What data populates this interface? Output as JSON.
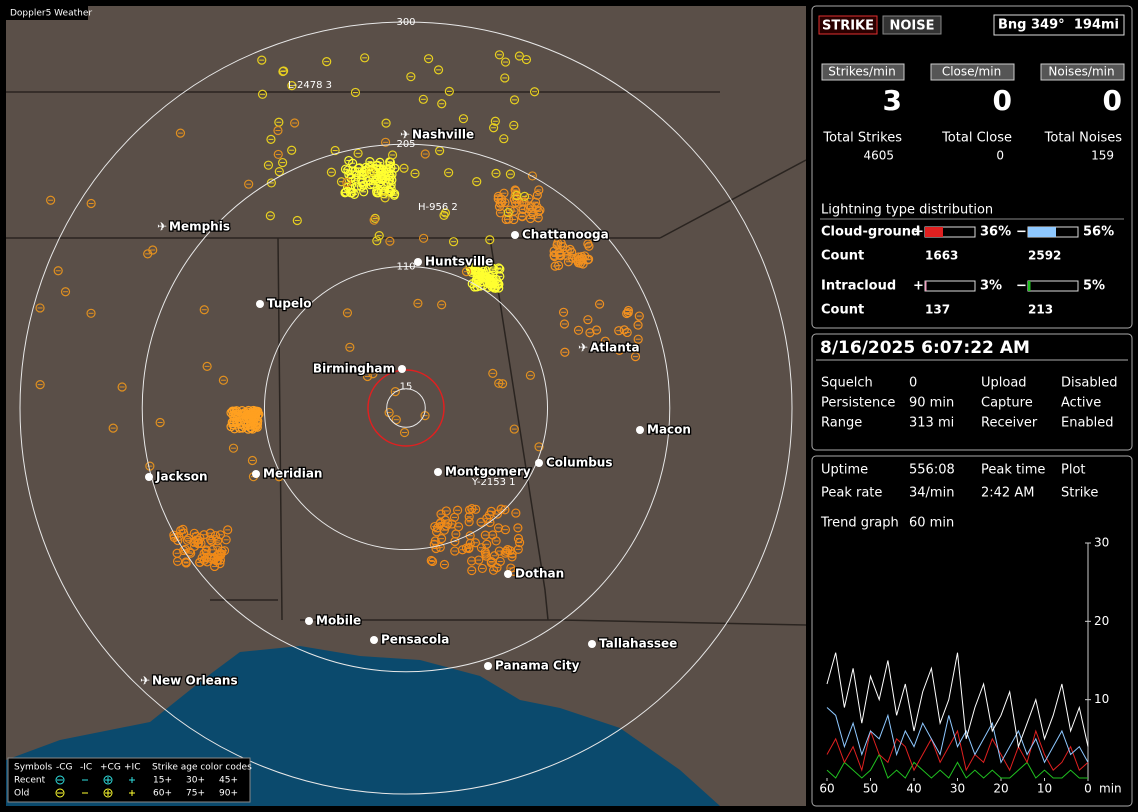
{
  "map": {
    "title": "Doppler5 Weather",
    "rings": [
      300,
      205,
      110,
      15
    ],
    "storms": [
      "L-2478 3",
      "H-956 2",
      "Y-2153 1"
    ],
    "cities": [
      "Nashville",
      "Memphis",
      "Chattanooga",
      "Huntsville",
      "Tupelo",
      "Atlanta",
      "Birmingham",
      "Macon",
      "Jackson",
      "Meridian",
      "Montgomery",
      "Columbus",
      "Dothan",
      "Mobile",
      "Pensacola",
      "Tallahassee",
      "Panama City",
      "New Orleans"
    ]
  },
  "legend": {
    "header": [
      "Symbols",
      "-CG",
      "-IC",
      "+CG",
      "+IC",
      "Strike age color codes"
    ],
    "recent": "Recent",
    "old": "Old",
    "recent_ages": [
      "15+",
      "30+",
      "45+"
    ],
    "old_ages": [
      "60+",
      "75+",
      "90+"
    ]
  },
  "status": {
    "strike": "STRIKE",
    "noise": "NOISE",
    "bearing": "Bng 349°",
    "distance": "194mi"
  },
  "rates": [
    {
      "label": "Strikes/min",
      "value": 3
    },
    {
      "label": "Close/min",
      "value": 0
    },
    {
      "label": "Noises/min",
      "value": 0
    }
  ],
  "totals": [
    {
      "label": "Total Strikes",
      "value": 4605
    },
    {
      "label": "Total Close",
      "value": 0
    },
    {
      "label": "Total Noises",
      "value": 159
    }
  ],
  "distribution": {
    "title": "Lightning type distribution",
    "signs": [
      "+",
      "−"
    ],
    "count_label": "Count",
    "rows": [
      {
        "label": "Cloud-ground",
        "pos": {
          "value": 36,
          "label": "36%"
        },
        "neg": {
          "value": 56,
          "label": "56%"
        },
        "pos_count": 1663,
        "neg_count": 2592
      },
      {
        "label": "Intracloud",
        "pos": {
          "value": 3,
          "label": "3%"
        },
        "neg": {
          "value": 5,
          "label": "5%"
        },
        "pos_count": 137,
        "neg_count": 213
      }
    ]
  },
  "datetime": "8/16/2025 6:07:22 AM",
  "settings": [
    [
      "Squelch",
      0,
      "Upload",
      "Disabled"
    ],
    [
      "Persistence",
      "90 min",
      "Capture",
      "Active"
    ],
    [
      "Range",
      "313 mi",
      "Receiver",
      "Enabled"
    ]
  ],
  "stats": [
    [
      "Uptime",
      "556:08",
      "Peak time",
      "Plot"
    ],
    [
      "Peak rate",
      "34/min",
      "2:42 AM",
      "Strike"
    ]
  ],
  "trend_label": "Trend graph",
  "trend_window": "60 min",
  "trend": {
    "ylim": [
      0,
      30
    ],
    "yticks": [
      10,
      20,
      30
    ],
    "xlim": [
      60,
      0
    ],
    "xticks": [
      60,
      50,
      40,
      30,
      20,
      10,
      0
    ],
    "x_unit": "min",
    "x": [
      60,
      58,
      56,
      54,
      52,
      50,
      48,
      46,
      44,
      42,
      40,
      38,
      36,
      34,
      32,
      30,
      28,
      26,
      24,
      22,
      20,
      18,
      16,
      14,
      12,
      10,
      8,
      6,
      4,
      2,
      0
    ],
    "series": [
      {
        "color": "#ffffff",
        "values": [
          12,
          16,
          9,
          14,
          7,
          13,
          10,
          15,
          8,
          12,
          6,
          11,
          14,
          7,
          10,
          16,
          5,
          9,
          12,
          6,
          8,
          11,
          4,
          7,
          10,
          5,
          8,
          12,
          6,
          9,
          4
        ]
      },
      {
        "color": "#8ec8ff",
        "values": [
          9,
          8,
          4,
          7,
          3,
          6,
          5,
          8,
          3,
          6,
          4,
          7,
          5,
          3,
          8,
          4,
          6,
          3,
          5,
          7,
          2,
          4,
          6,
          3,
          5,
          2,
          4,
          6,
          3,
          4,
          2
        ]
      },
      {
        "color": "#e02020",
        "values": [
          3,
          5,
          2,
          4,
          1,
          6,
          3,
          2,
          5,
          4,
          1,
          3,
          5,
          2,
          4,
          6,
          1,
          3,
          2,
          5,
          3,
          1,
          4,
          2,
          6,
          3,
          1,
          2,
          4,
          1,
          2
        ]
      },
      {
        "color": "#20c020",
        "values": [
          1,
          0,
          2,
          1,
          0,
          1,
          3,
          0,
          1,
          0,
          2,
          1,
          0,
          1,
          0,
          2,
          0,
          1,
          0,
          1,
          0,
          0,
          1,
          2,
          0,
          1,
          0,
          0,
          1,
          0,
          0
        ]
      }
    ]
  }
}
